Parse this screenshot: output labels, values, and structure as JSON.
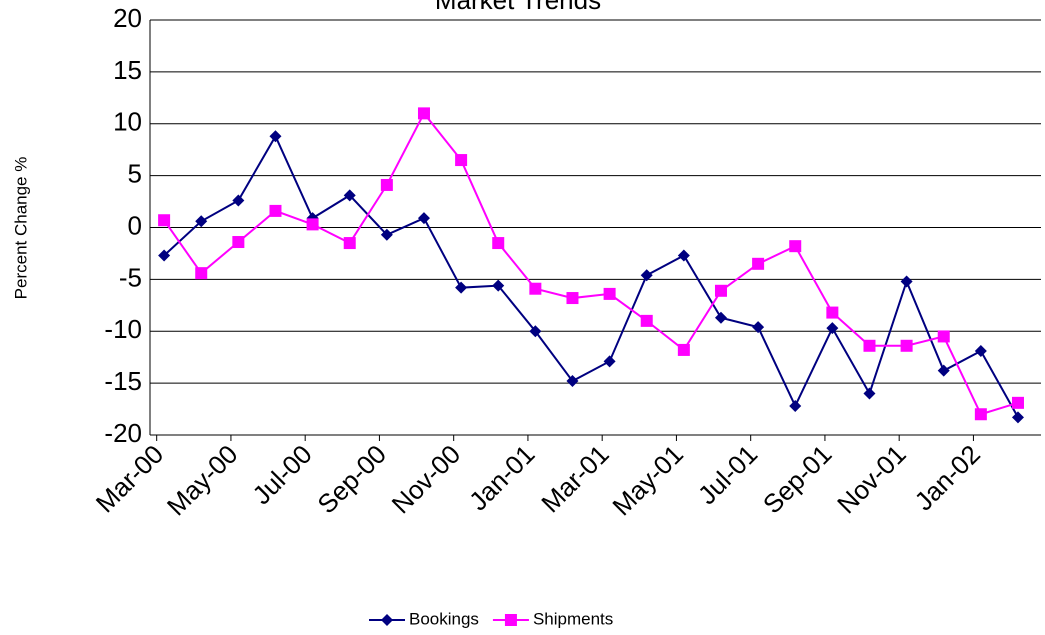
{
  "chart_data": {
    "type": "line",
    "title": "Market Trends",
    "y_label": "Percent Change %",
    "categories": [
      "Mar-00",
      null,
      "May-00",
      null,
      "Jul-00",
      null,
      "Sep-00",
      null,
      "Nov-00",
      null,
      "Jan-01",
      null,
      "Mar-01",
      null,
      "May-01",
      null,
      "Jul-01",
      null,
      "Sep-01",
      null,
      "Nov-01",
      null,
      "Jan-02",
      null
    ],
    "series": [
      {
        "name": "Bookings",
        "color": "#000080",
        "marker": "diamond",
        "values": [
          -2.7,
          0.6,
          2.6,
          8.8,
          0.9,
          3.1,
          -0.7,
          0.9,
          -5.8,
          -5.6,
          -10.0,
          -14.8,
          -12.9,
          -4.6,
          -2.7,
          -8.7,
          -9.6,
          -17.2,
          -9.7,
          -16.0,
          -5.2,
          -13.8,
          -11.9,
          -18.3
        ]
      },
      {
        "name": "Shipments",
        "color": "#ff00ff",
        "marker": "square",
        "values": [
          0.7,
          -4.4,
          -1.4,
          1.6,
          0.3,
          -1.5,
          4.1,
          11.0,
          6.5,
          -1.5,
          -5.9,
          -6.8,
          -6.4,
          -9.0,
          -11.8,
          -6.1,
          -3.5,
          -1.8,
          -8.2,
          -11.4,
          -11.4,
          -10.5,
          -18.0,
          -16.9
        ]
      }
    ],
    "ylim": [
      -20,
      20
    ],
    "yticks": [
      -20,
      -15,
      -10,
      -5,
      0,
      5,
      10,
      15,
      20
    ],
    "grid": true,
    "legend": "bottom"
  }
}
